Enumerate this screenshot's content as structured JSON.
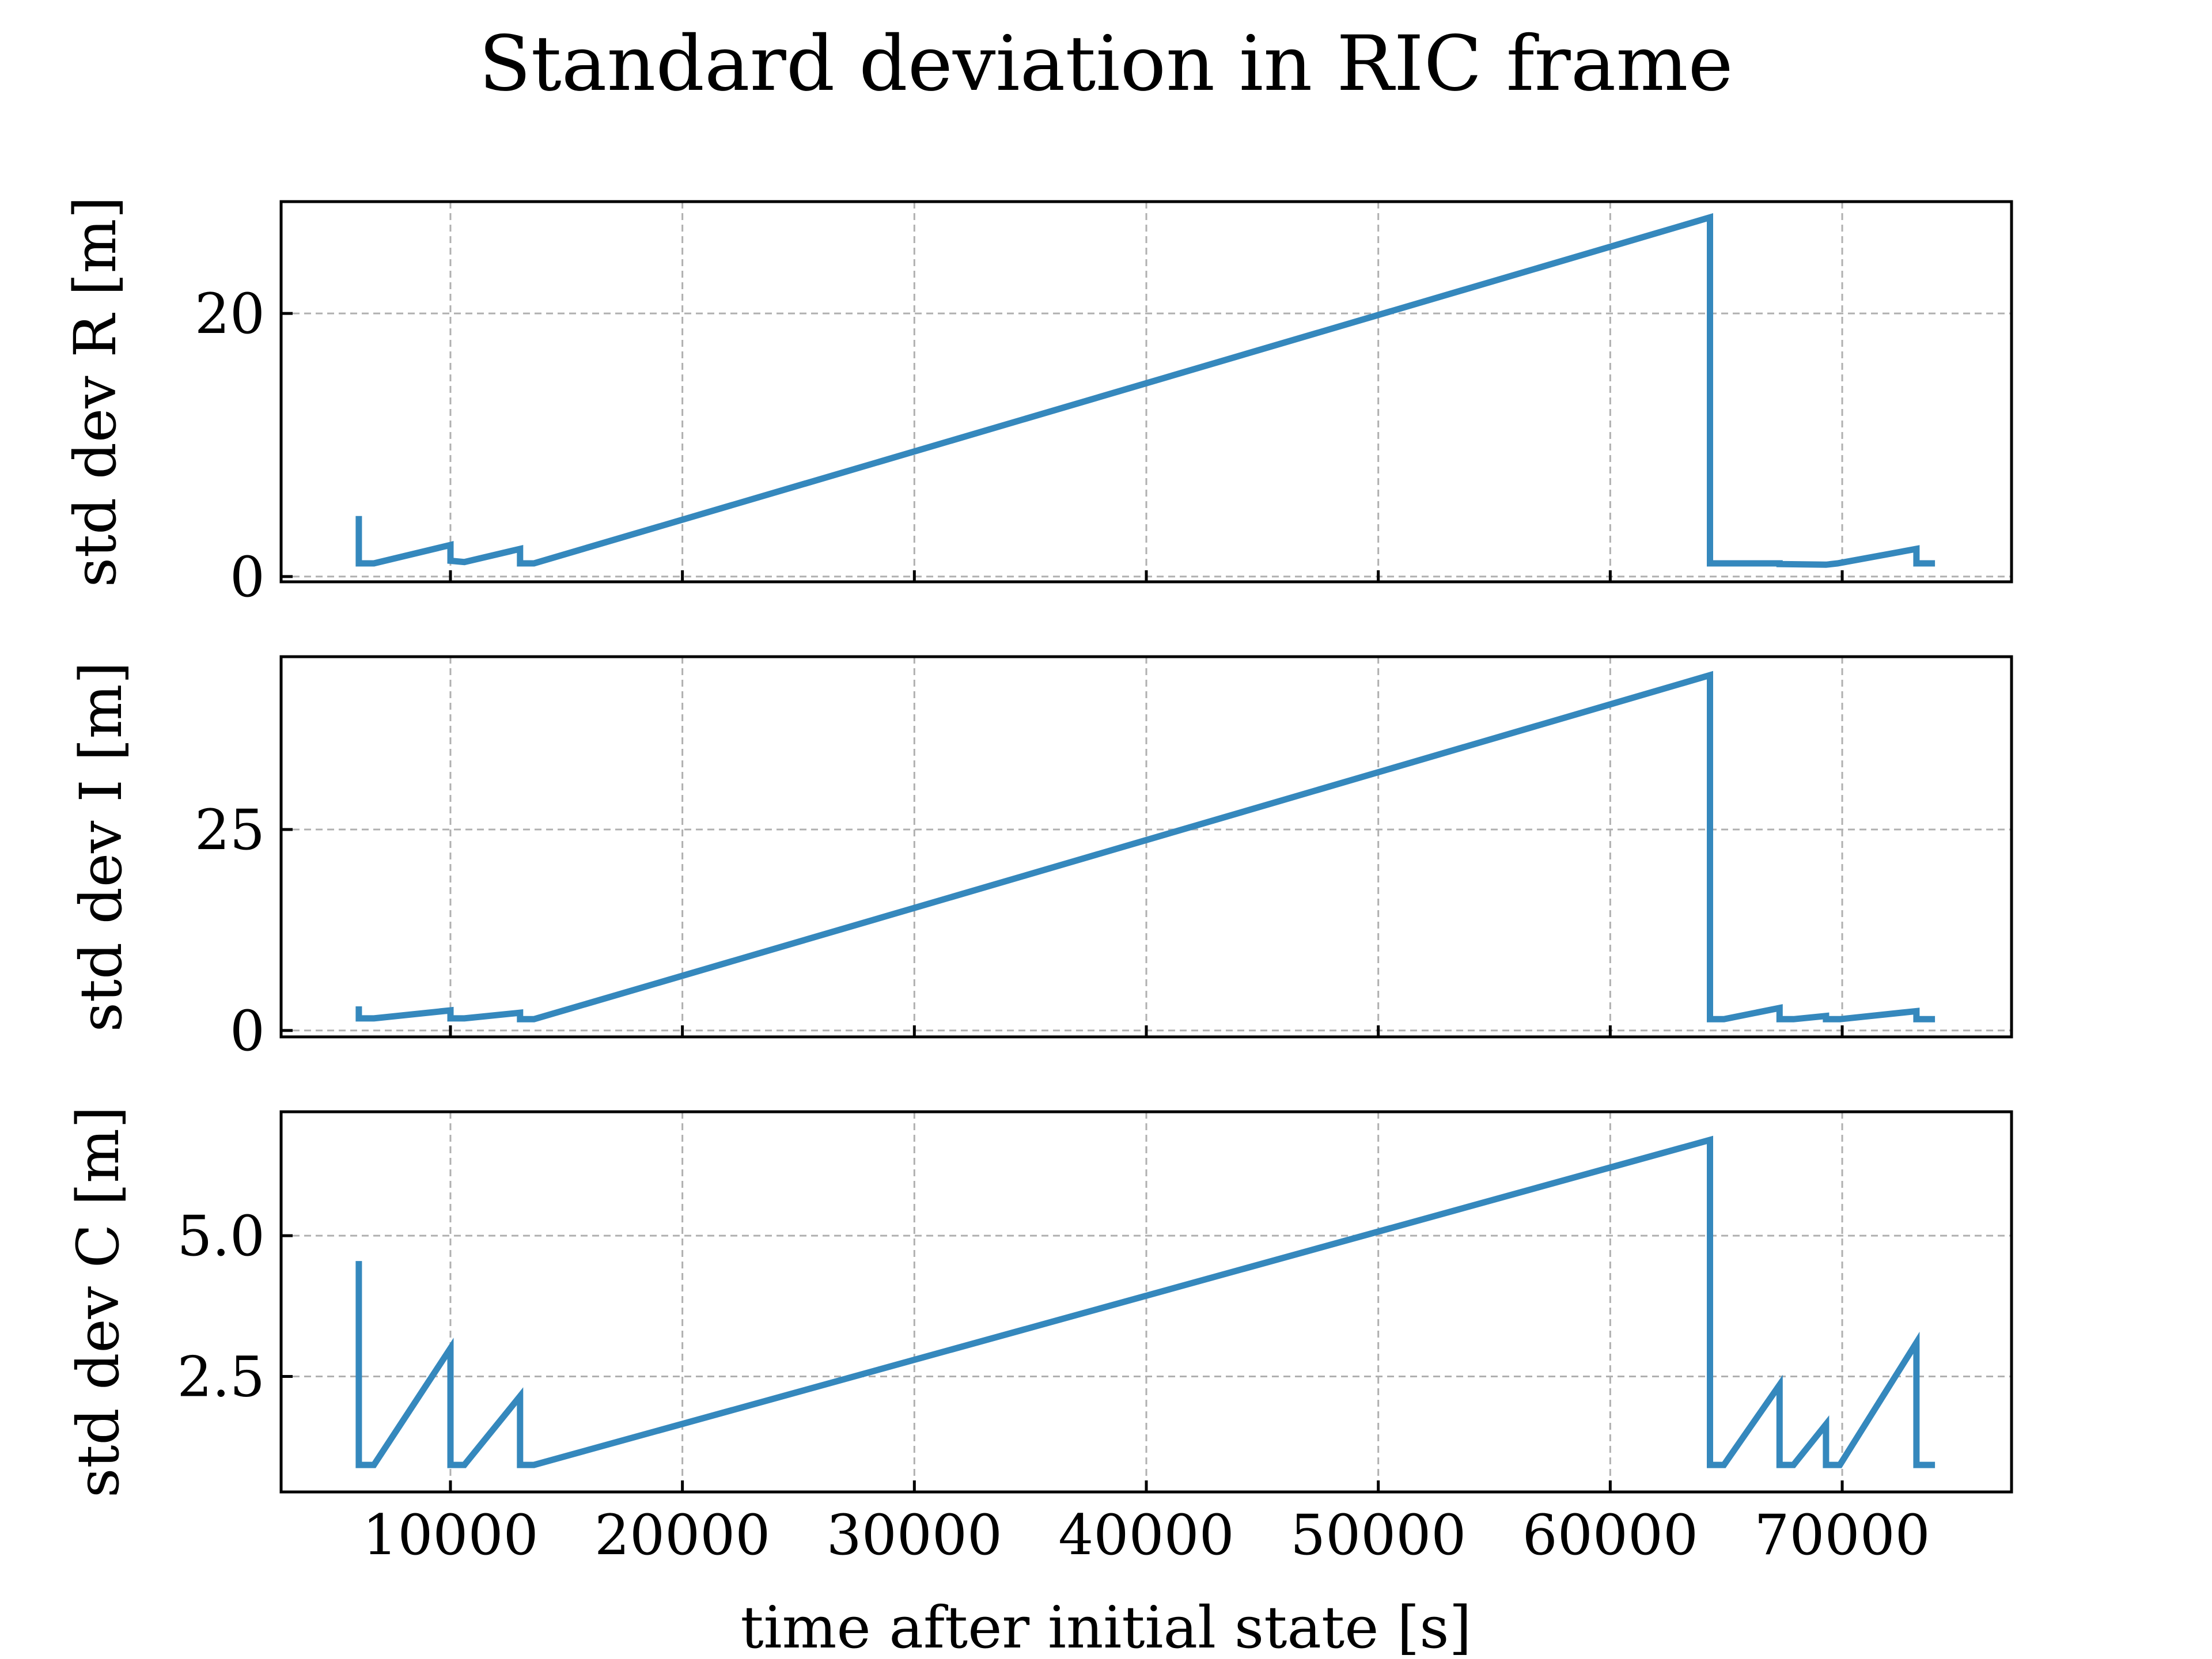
{
  "figure": {
    "title": "Standard deviation in RIC frame",
    "xlabel": "time after initial state [s]",
    "line_color": "#3588bd",
    "grid_color": "#b0b0b0"
  },
  "chart_data": [
    {
      "type": "line",
      "name": "panel-r",
      "ylabel": "std dev R [m]",
      "xlim": [
        2700,
        77300
      ],
      "ylim": [
        -0.4,
        28.5
      ],
      "xticks": [
        10000,
        20000,
        30000,
        40000,
        50000,
        60000,
        70000
      ],
      "yticks": [
        0,
        20
      ],
      "ytick_labels": [
        "0",
        "20"
      ],
      "show_x_tick_labels": false,
      "grid": true,
      "x": [
        6050,
        6050,
        6700,
        10000,
        10000,
        10600,
        13000,
        13000,
        13600,
        64300,
        64300,
        67300,
        67300,
        69300,
        69800,
        73200,
        73200,
        74000
      ],
      "y": [
        4.6,
        1.0,
        1.0,
        2.4,
        1.2,
        1.1,
        2.1,
        1.0,
        1.0,
        27.3,
        1.0,
        1.0,
        0.95,
        0.9,
        1.0,
        2.1,
        1.0,
        1.0
      ]
    },
    {
      "type": "line",
      "name": "panel-i",
      "ylabel": "std dev I [m]",
      "xlim": [
        2700,
        77300
      ],
      "ylim": [
        -0.8,
        46.5
      ],
      "xticks": [
        10000,
        20000,
        30000,
        40000,
        50000,
        60000,
        70000
      ],
      "yticks": [
        0,
        25
      ],
      "ytick_labels": [
        "0",
        "25"
      ],
      "show_x_tick_labels": false,
      "grid": true,
      "x": [
        6050,
        6050,
        6700,
        10000,
        10000,
        10600,
        13000,
        13000,
        13600,
        64300,
        64300,
        64900,
        67300,
        67300,
        67900,
        69300,
        69300,
        69900,
        73200,
        73200,
        74000
      ],
      "y": [
        3.0,
        1.5,
        1.5,
        2.5,
        1.5,
        1.5,
        2.2,
        1.4,
        1.4,
        44.2,
        1.4,
        1.4,
        2.8,
        1.4,
        1.4,
        1.8,
        1.4,
        1.4,
        2.4,
        1.4,
        1.4
      ]
    },
    {
      "type": "line",
      "name": "panel-c",
      "ylabel": "std dev C [m]",
      "xlim": [
        2700,
        77300
      ],
      "ylim": [
        0.45,
        7.2
      ],
      "xticks": [
        10000,
        20000,
        30000,
        40000,
        50000,
        60000,
        70000
      ],
      "yticks": [
        2.5,
        5.0
      ],
      "ytick_labels": [
        "2.5",
        "5.0"
      ],
      "show_x_tick_labels": true,
      "xtick_labels": [
        "10000",
        "20000",
        "30000",
        "40000",
        "50000",
        "60000",
        "70000"
      ],
      "grid": true,
      "x": [
        6050,
        6050,
        6700,
        10000,
        10000,
        10600,
        13000,
        13000,
        13600,
        64300,
        64300,
        64900,
        67300,
        67300,
        67900,
        69300,
        69300,
        69900,
        73200,
        73200,
        74000
      ],
      "y": [
        4.55,
        0.93,
        0.93,
        3.0,
        0.93,
        0.93,
        2.15,
        0.93,
        0.93,
        6.7,
        0.93,
        0.93,
        2.35,
        0.93,
        0.93,
        1.65,
        0.93,
        0.93,
        3.1,
        0.93,
        0.93
      ]
    }
  ]
}
